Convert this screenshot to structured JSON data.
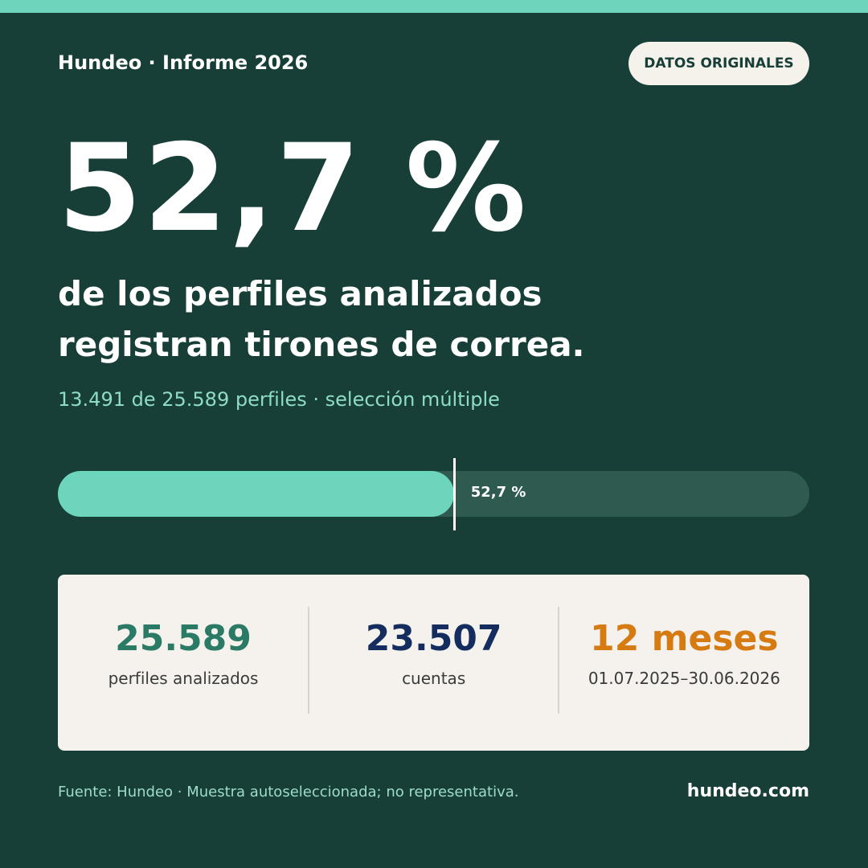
{
  "header": {
    "brand": "Hundeo · Informe 2026",
    "button": "DATOS ORIGINALES"
  },
  "headline": {
    "line1": "de los perfiles analizados",
    "line2": "registran tirones de correa.",
    "detail": "13.491 de 25.589 perfiles · selección múltiple"
  },
  "progress": {
    "value": 52.7,
    "value_label": "52,7 %",
    "range": [
      0,
      100
    ],
    "fill_color": "#6dd5bb",
    "track_color": "#2f5a50"
  },
  "stats": [
    {
      "value": "25.589",
      "label": "perfiles analizados",
      "color": "#2a7a66"
    },
    {
      "value": "23.507",
      "label": "cuentas",
      "color": "#142d5e"
    },
    {
      "value": "12 meses",
      "label": "01.07.2025–30.06.2026",
      "color": "#d67a12"
    }
  ],
  "footer": {
    "source": "Fuente: Hundeo · Muestra autoseleccionada; no representativa.",
    "site": "hundeo.com"
  }
}
